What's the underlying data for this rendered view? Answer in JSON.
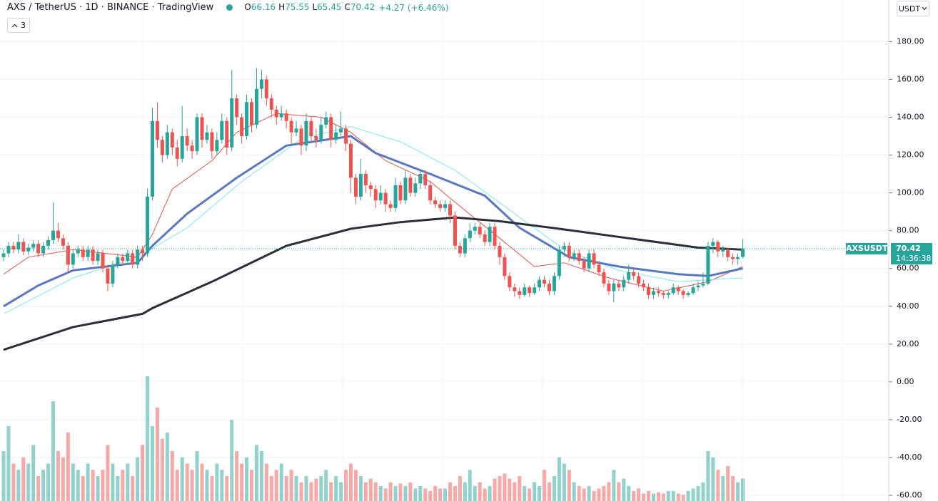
{
  "chart_data": {
    "type": "candlestick",
    "title": "AXS / TetherUS · 1D · BINANCE · TradingView",
    "ohlc_legend": [
      {
        "key": "O",
        "value": "66.16"
      },
      {
        "key": "H",
        "value": "75.55"
      },
      {
        "key": "L",
        "value": "65.45"
      },
      {
        "key": "C",
        "value": "70.42"
      }
    ],
    "change": "+4.27 (+6.46%)",
    "indicator_count": "3",
    "currency": "USDT",
    "symbol_tag": "AXSUSDT",
    "last_price": 70.42,
    "countdown": "14:36:38",
    "up_color": "#26a69a",
    "down_color": "#ef5350",
    "ylim": [
      -63,
      202
    ],
    "yticks": [
      {
        "value": 180,
        "label": "180.00"
      },
      {
        "value": 160,
        "label": "160.00"
      },
      {
        "value": 140,
        "label": "140.00"
      },
      {
        "value": 120,
        "label": "120.00"
      },
      {
        "value": 100,
        "label": "100.00"
      },
      {
        "value": 80,
        "label": "80.00"
      },
      {
        "value": 60,
        "label": "60.00"
      },
      {
        "value": 40,
        "label": "40.00"
      },
      {
        "value": 20,
        "label": "20.00"
      },
      {
        "value": 0,
        "label": "0.00"
      },
      {
        "value": -20,
        "label": "-20.00"
      },
      {
        "value": -40,
        "label": "-40.00"
      },
      {
        "value": -60,
        "label": "-60.00"
      }
    ],
    "grid": true,
    "candles": [
      [
        66,
        70,
        64,
        68
      ],
      [
        68,
        74,
        66,
        72
      ],
      [
        72,
        74,
        68,
        70
      ],
      [
        70,
        78,
        68,
        74
      ],
      [
        74,
        76,
        67,
        69
      ],
      [
        69,
        73,
        67,
        71
      ],
      [
        71,
        75,
        69,
        73
      ],
      [
        73,
        75,
        66,
        68
      ],
      [
        68,
        74,
        66,
        72
      ],
      [
        72,
        77,
        70,
        75
      ],
      [
        75,
        95,
        73,
        80
      ],
      [
        80,
        84,
        74,
        76
      ],
      [
        76,
        78,
        70,
        72
      ],
      [
        72,
        74,
        58,
        62
      ],
      [
        62,
        70,
        60,
        68
      ],
      [
        68,
        72,
        66,
        70
      ],
      [
        70,
        72,
        64,
        66
      ],
      [
        66,
        72,
        64,
        70
      ],
      [
        70,
        72,
        62,
        64
      ],
      [
        64,
        70,
        62,
        68
      ],
      [
        68,
        70,
        58,
        60
      ],
      [
        60,
        62,
        48,
        52
      ],
      [
        52,
        64,
        50,
        62
      ],
      [
        62,
        68,
        60,
        66
      ],
      [
        66,
        68,
        62,
        64
      ],
      [
        64,
        70,
        62,
        68
      ],
      [
        68,
        70,
        60,
        62
      ],
      [
        62,
        72,
        60,
        70
      ],
      [
        70,
        72,
        64,
        68
      ],
      [
        68,
        102,
        66,
        98
      ],
      [
        98,
        145,
        96,
        138
      ],
      [
        138,
        148,
        124,
        128
      ],
      [
        128,
        130,
        116,
        120
      ],
      [
        120,
        136,
        118,
        132
      ],
      [
        132,
        134,
        120,
        124
      ],
      [
        124,
        128,
        114,
        118
      ],
      [
        118,
        146,
        116,
        130
      ],
      [
        130,
        134,
        122,
        125
      ],
      [
        125,
        128,
        118,
        122
      ],
      [
        122,
        142,
        120,
        140
      ],
      [
        140,
        142,
        124,
        128
      ],
      [
        128,
        136,
        126,
        132
      ],
      [
        132,
        134,
        118,
        122
      ],
      [
        122,
        132,
        120,
        128
      ],
      [
        128,
        142,
        126,
        138
      ],
      [
        138,
        140,
        120,
        124
      ],
      [
        124,
        165,
        122,
        150
      ],
      [
        150,
        152,
        136,
        140
      ],
      [
        140,
        142,
        126,
        130
      ],
      [
        130,
        152,
        128,
        148
      ],
      [
        148,
        150,
        132,
        136
      ],
      [
        136,
        166,
        134,
        155
      ],
      [
        155,
        165,
        150,
        160
      ],
      [
        160,
        162,
        146,
        150
      ],
      [
        150,
        152,
        140,
        144
      ],
      [
        144,
        146,
        136,
        140
      ],
      [
        140,
        146,
        138,
        142
      ],
      [
        142,
        144,
        134,
        138
      ],
      [
        138,
        140,
        126,
        132
      ],
      [
        132,
        138,
        130,
        134
      ],
      [
        134,
        136,
        120,
        125
      ],
      [
        125,
        142,
        122,
        138
      ],
      [
        138,
        140,
        126,
        130
      ],
      [
        130,
        134,
        124,
        128
      ],
      [
        128,
        140,
        126,
        136
      ],
      [
        136,
        143,
        134,
        140
      ],
      [
        140,
        142,
        124,
        128
      ],
      [
        128,
        136,
        126,
        132
      ],
      [
        132,
        143,
        130,
        134
      ],
      [
        134,
        136,
        122,
        126
      ],
      [
        126,
        128,
        100,
        108
      ],
      [
        108,
        110,
        94,
        98
      ],
      [
        98,
        118,
        96,
        110
      ],
      [
        110,
        112,
        100,
        104
      ],
      [
        104,
        106,
        98,
        102
      ],
      [
        102,
        104,
        92,
        96
      ],
      [
        96,
        104,
        94,
        100
      ],
      [
        100,
        102,
        90,
        94
      ],
      [
        94,
        96,
        90,
        92
      ],
      [
        92,
        108,
        90,
        104
      ],
      [
        104,
        106,
        94,
        96
      ],
      [
        96,
        112,
        94,
        108
      ],
      [
        108,
        110,
        98,
        100
      ],
      [
        100,
        108,
        98,
        105
      ],
      [
        105,
        112,
        102,
        110
      ],
      [
        110,
        112,
        102,
        104
      ],
      [
        104,
        106,
        94,
        96
      ],
      [
        96,
        98,
        92,
        94
      ],
      [
        94,
        96,
        90,
        92
      ],
      [
        92,
        96,
        90,
        94
      ],
      [
        94,
        96,
        84,
        88
      ],
      [
        88,
        90,
        70,
        72
      ],
      [
        72,
        74,
        66,
        68
      ],
      [
        68,
        78,
        66,
        76
      ],
      [
        76,
        84,
        74,
        80
      ],
      [
        80,
        84,
        78,
        82
      ],
      [
        82,
        84,
        76,
        78
      ],
      [
        78,
        80,
        72,
        74
      ],
      [
        74,
        84,
        72,
        82
      ],
      [
        82,
        84,
        70,
        72
      ],
      [
        72,
        74,
        62,
        66
      ],
      [
        66,
        68,
        54,
        56
      ],
      [
        56,
        58,
        48,
        50
      ],
      [
        50,
        52,
        45,
        48
      ],
      [
        48,
        50,
        44,
        46
      ],
      [
        46,
        52,
        45,
        50
      ],
      [
        50,
        51,
        45,
        47
      ],
      [
        47,
        52,
        46,
        50
      ],
      [
        50,
        56,
        48,
        54
      ],
      [
        54,
        56,
        50,
        52
      ],
      [
        52,
        54,
        46,
        48
      ],
      [
        48,
        58,
        46,
        56
      ],
      [
        56,
        72,
        54,
        70
      ],
      [
        70,
        74,
        66,
        72
      ],
      [
        72,
        74,
        64,
        66
      ],
      [
        66,
        70,
        64,
        68
      ],
      [
        68,
        70,
        62,
        64
      ],
      [
        64,
        66,
        58,
        60
      ],
      [
        60,
        70,
        58,
        68
      ],
      [
        68,
        70,
        60,
        62
      ],
      [
        62,
        64,
        56,
        58
      ],
      [
        58,
        60,
        50,
        52
      ],
      [
        52,
        54,
        46,
        48
      ],
      [
        48,
        54,
        42,
        52
      ],
      [
        52,
        54,
        48,
        50
      ],
      [
        50,
        56,
        48,
        54
      ],
      [
        54,
        62,
        52,
        58
      ],
      [
        58,
        60,
        54,
        56
      ],
      [
        56,
        58,
        50,
        52
      ],
      [
        52,
        54,
        48,
        50
      ],
      [
        50,
        52,
        44,
        46
      ],
      [
        46,
        50,
        44,
        48
      ],
      [
        48,
        50,
        45,
        47
      ],
      [
        47,
        48,
        44,
        46
      ],
      [
        46,
        48,
        44,
        47
      ],
      [
        47,
        52,
        46,
        50
      ],
      [
        50,
        51,
        46,
        48
      ],
      [
        48,
        49,
        44,
        46
      ],
      [
        46,
        48,
        45,
        47
      ],
      [
        47,
        52,
        46,
        50
      ],
      [
        50,
        53,
        48,
        51
      ],
      [
        51,
        58,
        50,
        52
      ],
      [
        52,
        74,
        51,
        72
      ],
      [
        72,
        76,
        68,
        74
      ],
      [
        74,
        75,
        66,
        69
      ],
      [
        69,
        72,
        66,
        70
      ],
      [
        70,
        71,
        64,
        66
      ],
      [
        66,
        68,
        62,
        65
      ],
      [
        65,
        68,
        62,
        66
      ],
      [
        66.16,
        75.55,
        65.45,
        70.42
      ]
    ],
    "vlim": [
      0,
      100
    ],
    "volume": [
      40,
      60,
      30,
      25,
      35,
      30,
      45,
      20,
      25,
      30,
      80,
      40,
      35,
      55,
      30,
      25,
      20,
      30,
      25,
      20,
      25,
      45,
      30,
      20,
      25,
      30,
      20,
      35,
      45,
      100,
      60,
      75,
      50,
      55,
      40,
      25,
      35,
      30,
      25,
      40,
      30,
      25,
      20,
      30,
      25,
      20,
      65,
      40,
      30,
      35,
      25,
      45,
      40,
      30,
      20,
      25,
      30,
      20,
      25,
      20,
      15,
      20,
      15,
      18,
      20,
      25,
      15,
      20,
      15,
      25,
      30,
      25,
      20,
      15,
      18,
      15,
      12,
      10,
      15,
      12,
      14,
      12,
      15,
      10,
      12,
      10,
      8,
      12,
      10,
      10,
      15,
      12,
      20,
      15,
      25,
      12,
      15,
      10,
      12,
      18,
      20,
      22,
      18,
      15,
      20,
      12,
      10,
      15,
      12,
      25,
      15,
      20,
      35,
      30,
      25,
      15,
      12,
      10,
      12,
      8,
      10,
      12,
      15,
      25,
      15,
      18,
      12,
      8,
      10,
      6,
      8,
      6,
      7,
      6,
      8,
      8,
      6,
      5,
      8,
      10,
      12,
      15,
      40,
      35,
      25,
      20,
      28,
      20,
      15,
      18
    ],
    "moving_averages": [
      {
        "color": "#e0544f",
        "x": [
          0,
          5,
          14,
          27,
          30,
          34,
          42,
          47,
          55,
          64,
          70,
          77,
          86,
          91,
          100,
          107,
          113,
          122,
          133,
          142,
          149
        ],
        "values": [
          57,
          66,
          70,
          66,
          78,
          102,
          117,
          132,
          142,
          140,
          132,
          117,
          106,
          95,
          76,
          61,
          63,
          55,
          48,
          53,
          61
        ]
      },
      {
        "color": "#7ee8f0",
        "x": [
          0,
          14,
          27,
          37,
          48,
          60,
          70,
          80,
          91,
          103,
          113,
          124,
          136,
          142,
          149
        ],
        "values": [
          36,
          55,
          66,
          81.5,
          106,
          128.5,
          135,
          127,
          112,
          89,
          70,
          59,
          53,
          54,
          55
        ]
      },
      {
        "color": "#5a78c0",
        "x": [
          0,
          7,
          14,
          27,
          30,
          37,
          47,
          57,
          70,
          75,
          86,
          97,
          104,
          114,
          124,
          136,
          142,
          149
        ],
        "values": [
          40,
          51,
          59,
          63,
          72,
          89,
          108,
          125,
          130,
          121,
          110,
          98.5,
          81.5,
          66,
          61,
          57,
          56,
          60
        ]
      },
      {
        "color": "#2a2e39",
        "x": [
          0,
          14,
          28,
          30,
          42,
          57,
          70,
          80,
          91,
          100,
          112,
          126,
          140,
          149
        ],
        "values": [
          17,
          29,
          36,
          39,
          53,
          72,
          81,
          84.5,
          87,
          85,
          81,
          76,
          71,
          70
        ]
      }
    ]
  }
}
